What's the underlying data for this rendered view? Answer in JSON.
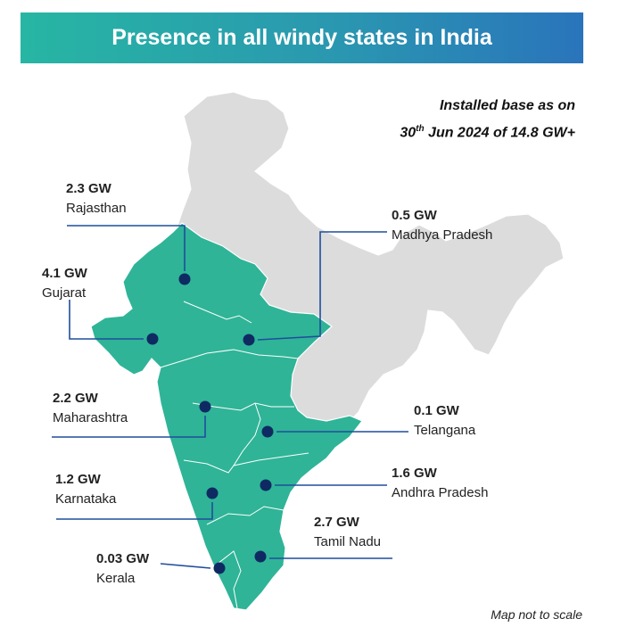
{
  "title": "Presence in all windy states in India",
  "caption": {
    "line1": "Installed base as on",
    "line2_day": "30",
    "line2_suffix": "th",
    "line2_rest": " Jun 2024 of 14.8 GW+"
  },
  "footnote": "Map not to scale",
  "colors": {
    "highlight": "#2fb497",
    "base": "#dcdcdc",
    "border": "#ffffff",
    "marker": "#0f2a63",
    "leader": "#1f4e9c"
  },
  "states": [
    {
      "id": "rajasthan",
      "value": "2.3 GW",
      "name": "Rajasthan"
    },
    {
      "id": "gujarat",
      "value": "4.1 GW",
      "name": "Gujarat"
    },
    {
      "id": "maharashtra",
      "value": "2.2 GW",
      "name": "Maharashtra"
    },
    {
      "id": "karnataka",
      "value": "1.2 GW",
      "name": "Karnataka"
    },
    {
      "id": "kerala",
      "value": "0.03 GW",
      "name": "Kerala"
    },
    {
      "id": "madhya-pradesh",
      "value": "0.5 GW",
      "name": "Madhya Pradesh"
    },
    {
      "id": "telangana",
      "value": "0.1 GW",
      "name": "Telangana"
    },
    {
      "id": "andhra-pradesh",
      "value": "1.6 GW",
      "name": "Andhra Pradesh"
    },
    {
      "id": "tamil-nadu",
      "value": "2.7 GW",
      "name": "Tamil Nadu"
    }
  ]
}
